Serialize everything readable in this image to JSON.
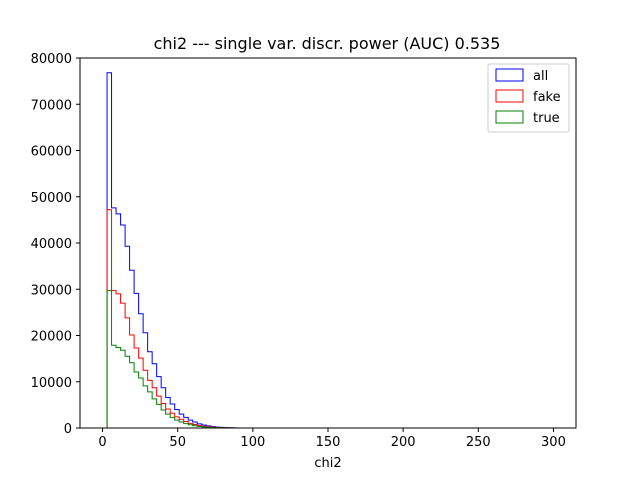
{
  "chart_data": {
    "type": "histogram-step",
    "title": "chi2 --- single var. discr. power (AUC) 0.535",
    "xlabel": "chi2",
    "ylabel": "",
    "xlim": [
      -15,
      315
    ],
    "ylim": [
      0,
      80000
    ],
    "xticks": [
      0,
      50,
      100,
      150,
      200,
      250,
      300
    ],
    "yticks": [
      0,
      10000,
      20000,
      30000,
      40000,
      50000,
      60000,
      70000,
      80000
    ],
    "bin_start": 0,
    "bin_width": 3,
    "legend": {
      "position": "top-right"
    },
    "grid": false,
    "series": [
      {
        "name": "all",
        "color": "#0000ff",
        "values": [
          0,
          76800,
          47600,
          46300,
          43900,
          39300,
          34100,
          29100,
          24700,
          20600,
          16500,
          13900,
          11100,
          8700,
          6600,
          5200,
          4000,
          3000,
          2300,
          1700,
          1300,
          900,
          650,
          450,
          300,
          200,
          130,
          80,
          40,
          20
        ]
      },
      {
        "name": "fake",
        "color": "#ff0000",
        "values": [
          0,
          47200,
          29700,
          29000,
          27000,
          23800,
          20100,
          17300,
          15100,
          12500,
          10300,
          8700,
          6900,
          5300,
          4100,
          3200,
          2400,
          1900,
          1400,
          1000,
          750,
          550,
          380,
          260,
          170,
          110,
          70,
          40,
          20,
          10
        ]
      },
      {
        "name": "true",
        "color": "#008000",
        "values": [
          0,
          29700,
          17900,
          17400,
          16800,
          15500,
          14100,
          12100,
          10800,
          9100,
          7800,
          6300,
          5100,
          3900,
          3000,
          2300,
          1700,
          1300,
          950,
          700,
          500,
          350,
          240,
          160,
          100,
          70,
          40,
          25,
          15,
          8
        ]
      }
    ]
  }
}
